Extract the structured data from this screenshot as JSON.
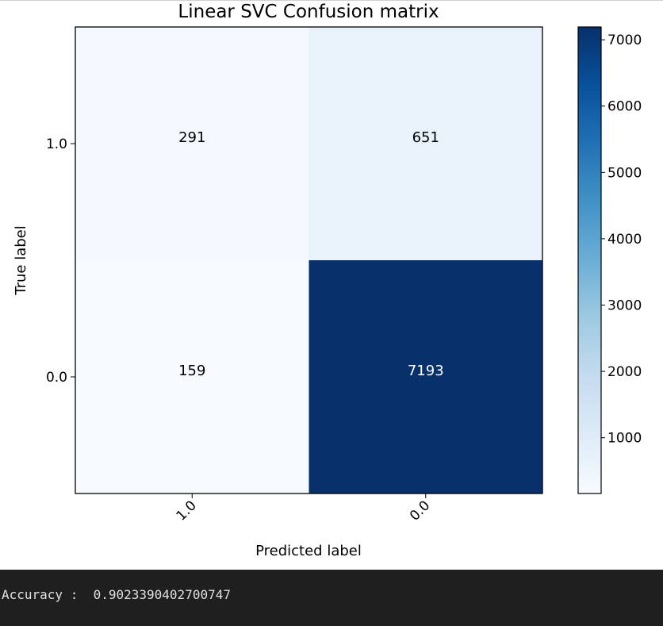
{
  "chart_data": {
    "type": "heatmap",
    "title": "Linear SVC Confusion matrix",
    "xlabel": "Predicted label",
    "ylabel": "True label",
    "x_categories": [
      "1.0",
      "0.0"
    ],
    "y_categories": [
      "1.0",
      "0.0"
    ],
    "values": [
      [
        291,
        651
      ],
      [
        159,
        7193
      ]
    ],
    "colormap": "Blues",
    "color_range": [
      159,
      7193
    ],
    "colorbar_ticks": [
      1000,
      2000,
      3000,
      4000,
      5000,
      6000,
      7000
    ],
    "grid": false
  },
  "output": {
    "accuracy_text": "Accuracy :  0.9023390402700747"
  }
}
